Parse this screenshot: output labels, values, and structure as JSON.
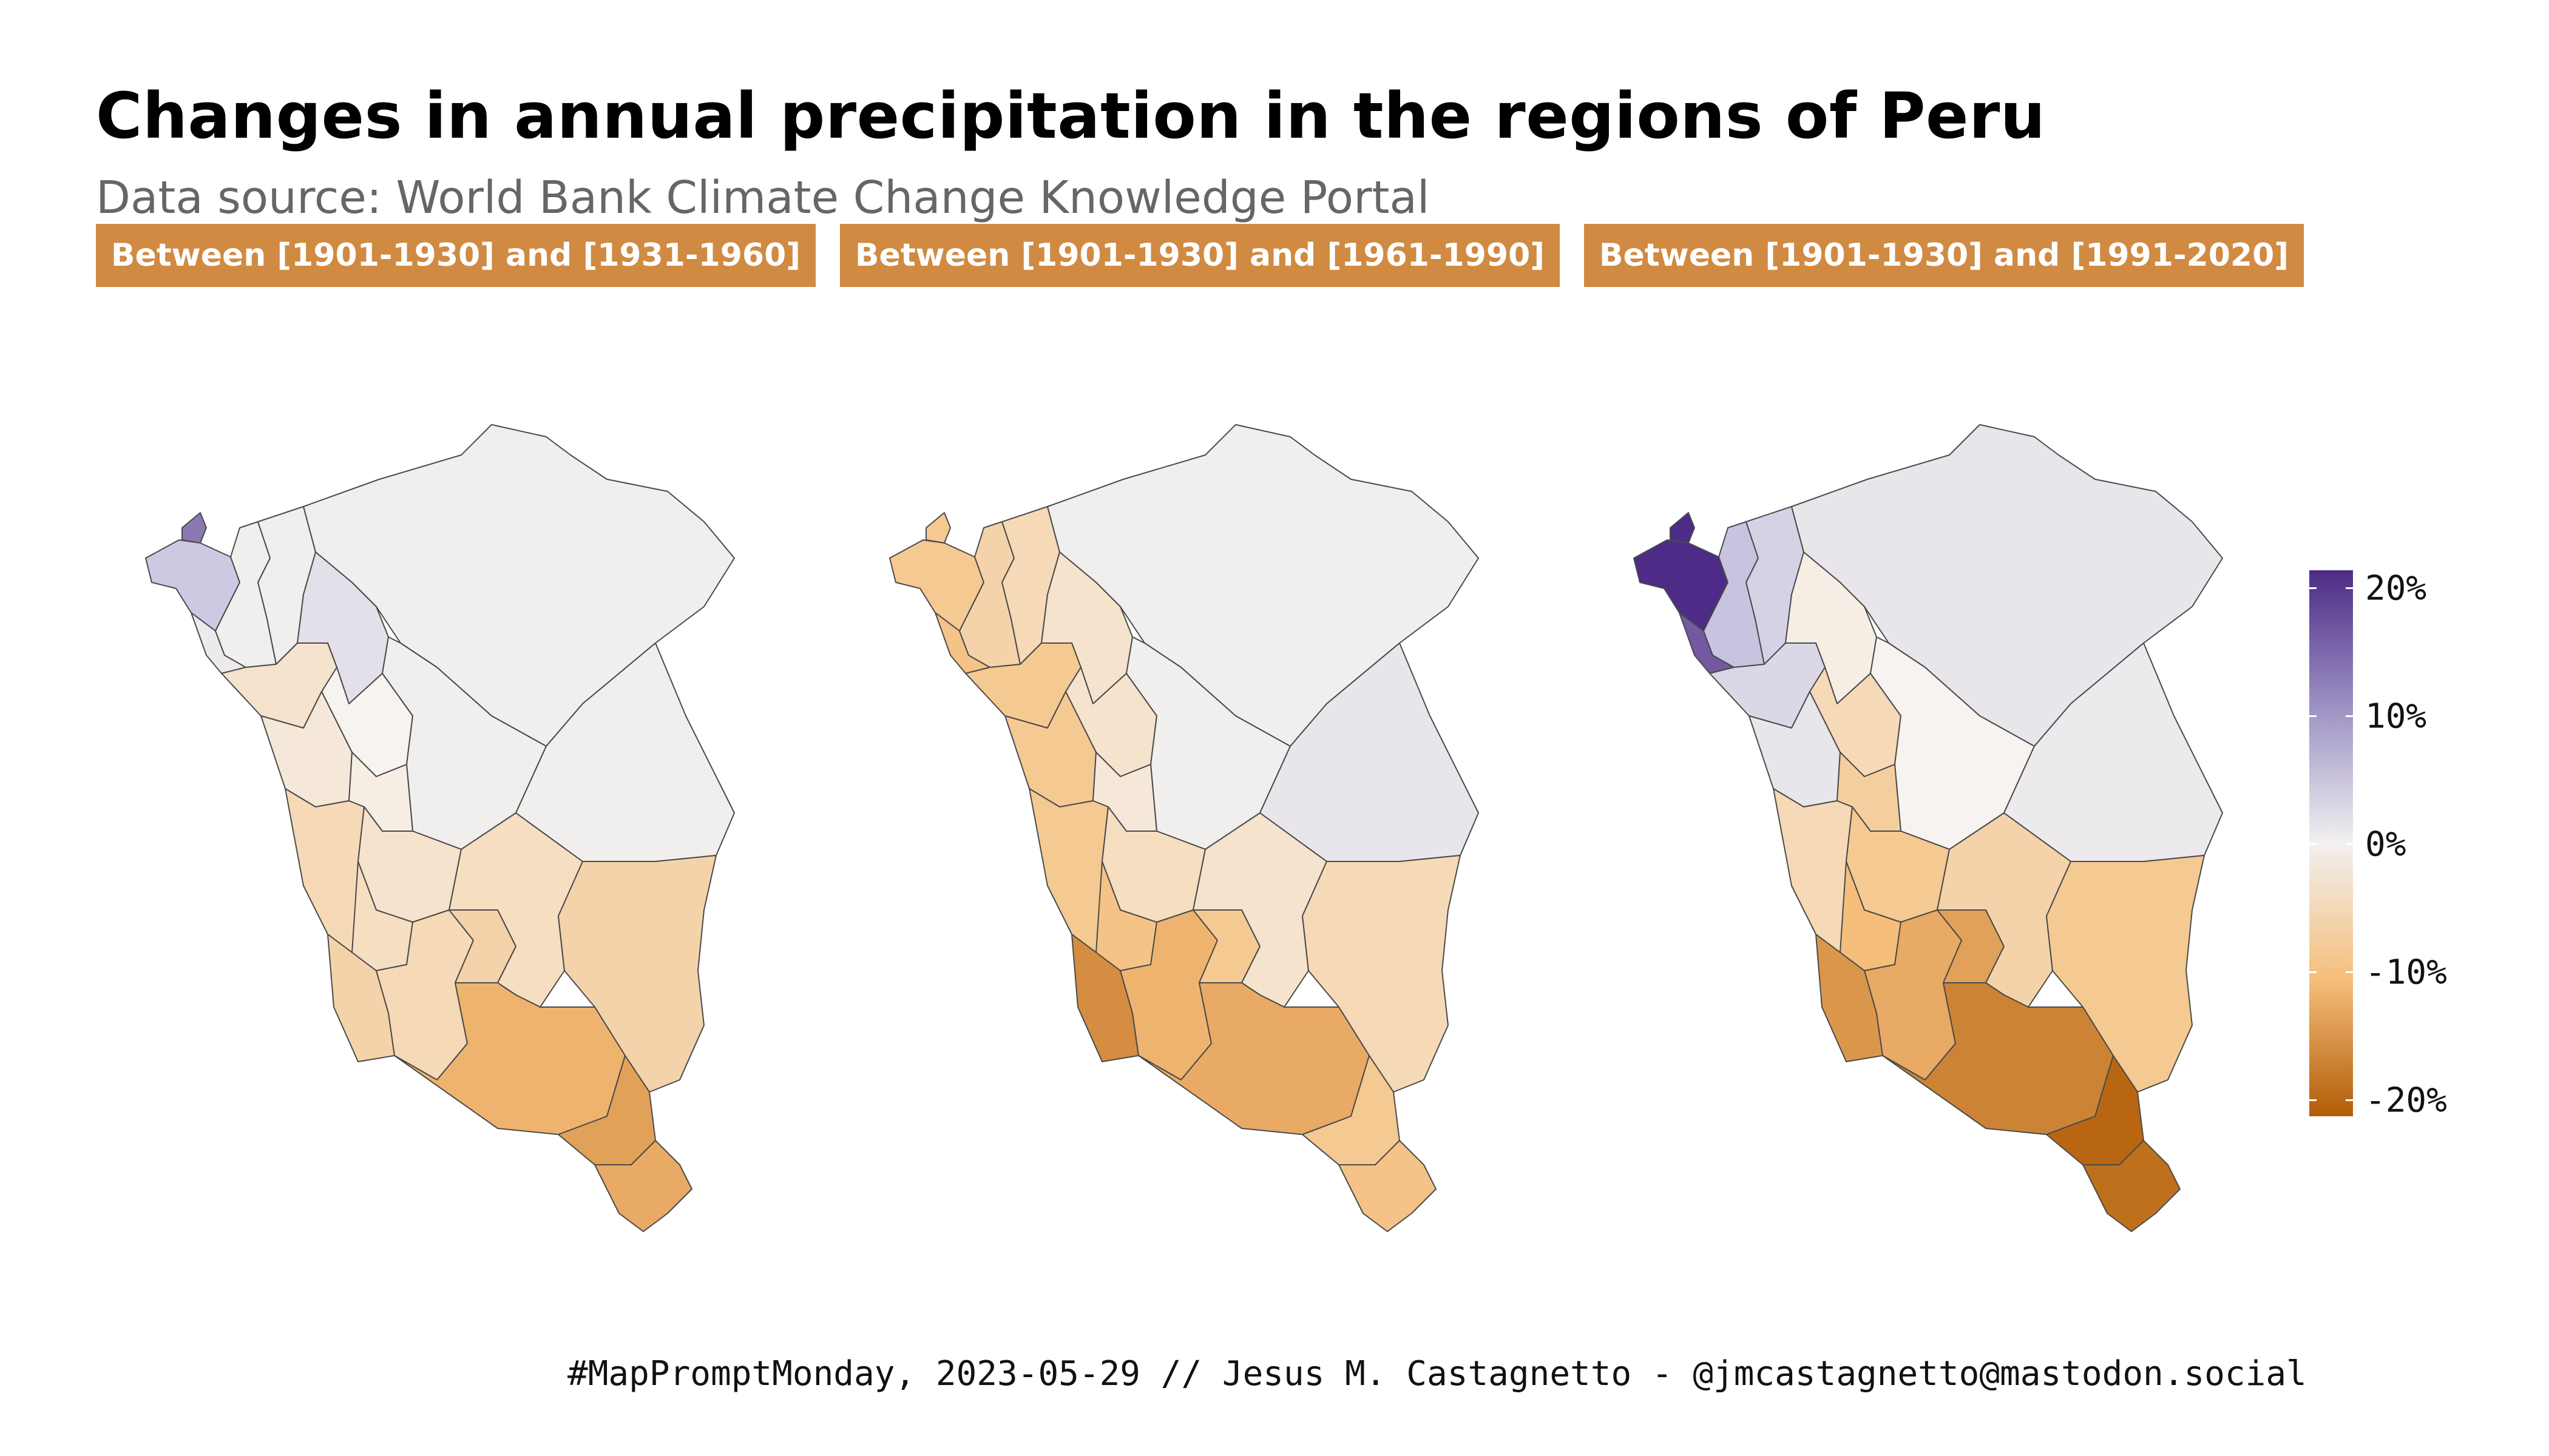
{
  "title": "Changes in annual precipitation in the regions of Peru",
  "subtitle": "Data source: World Bank Climate Change Knowledge Portal",
  "caption": "#MapPromptMonday, 2023-05-29 // Jesus M. Castagnetto - @jmcastagnetto@mastodon.social",
  "panels": [
    {
      "label": "Between [1901-1930] and [1931-1960]"
    },
    {
      "label": "Between [1901-1930] and [1961-1990]"
    },
    {
      "label": "Between [1901-1930] and [1991-2020]"
    }
  ],
  "legend": {
    "labels": [
      "20%",
      "10%",
      "0%",
      "-10%",
      "-20%"
    ],
    "values": [
      20,
      10,
      0,
      -10,
      -20
    ],
    "colors": {
      "max": "#4d2b86",
      "high": "#9c91c3",
      "mid": "#f2f0f0",
      "low": "#f5be7b",
      "min": "#b25c06"
    }
  },
  "regions": [
    {
      "id": "tumbes",
      "changes": [
        15,
        -8,
        21
      ]
    },
    {
      "id": "piura",
      "changes": [
        9,
        -8,
        20
      ]
    },
    {
      "id": "lambayeque",
      "changes": [
        2,
        -9,
        17
      ]
    },
    {
      "id": "cajamarca",
      "changes": [
        1,
        -6,
        10
      ]
    },
    {
      "id": "amazonas",
      "changes": [
        1,
        -5,
        7
      ]
    },
    {
      "id": "loreto",
      "changes": [
        1,
        1,
        3
      ]
    },
    {
      "id": "san-martin",
      "changes": [
        4,
        -3,
        -1
      ]
    },
    {
      "id": "la-libertad",
      "changes": [
        -3,
        -8,
        6
      ]
    },
    {
      "id": "ancash",
      "changes": [
        -2,
        -8,
        3
      ]
    },
    {
      "id": "huanuco",
      "changes": [
        0,
        -3,
        -5
      ]
    },
    {
      "id": "ucayali",
      "changes": [
        1,
        1,
        0
      ]
    },
    {
      "id": "pasco",
      "changes": [
        -1,
        -2,
        -7
      ]
    },
    {
      "id": "lima",
      "changes": [
        -5,
        -8,
        -5
      ]
    },
    {
      "id": "junin",
      "changes": [
        -3,
        -4,
        -8
      ]
    },
    {
      "id": "madre-de-dios",
      "changes": [
        1,
        3,
        2
      ]
    },
    {
      "id": "huancavelica",
      "changes": [
        -4,
        -9,
        -10
      ]
    },
    {
      "id": "ica",
      "changes": [
        -6,
        -15,
        -14
      ]
    },
    {
      "id": "ayacucho",
      "changes": [
        -5,
        -11,
        -12
      ]
    },
    {
      "id": "apurimac",
      "changes": [
        -6,
        -8,
        -13
      ]
    },
    {
      "id": "cusco",
      "changes": [
        -4,
        -3,
        -6
      ]
    },
    {
      "id": "puno",
      "changes": [
        -6,
        -5,
        -8
      ]
    },
    {
      "id": "arequipa",
      "changes": [
        -11,
        -12,
        -16
      ]
    },
    {
      "id": "moquegua",
      "changes": [
        -13,
        -8,
        -19
      ]
    },
    {
      "id": "tacna",
      "changes": [
        -12,
        -9,
        -18
      ]
    }
  ]
}
